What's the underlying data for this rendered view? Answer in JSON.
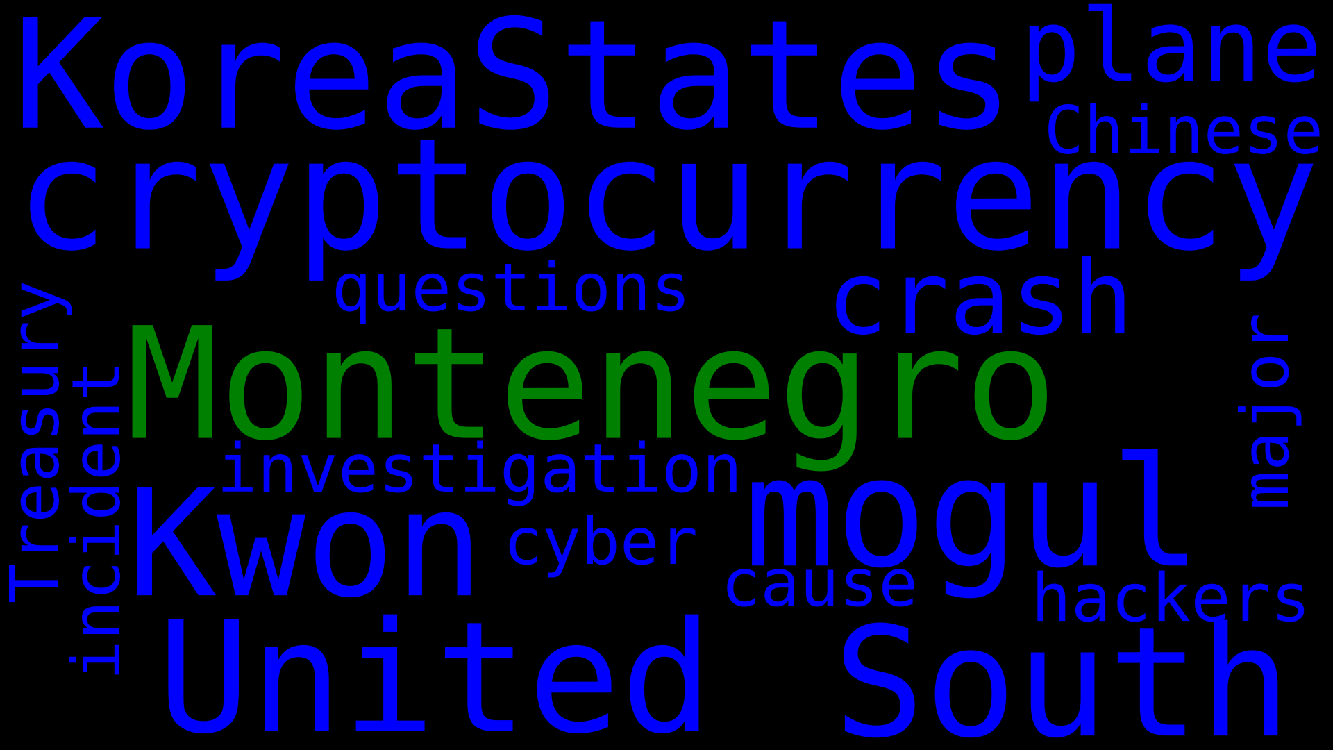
{
  "words": [
    {
      "text": "Korea",
      "color": "#0000ff"
    },
    {
      "text": "States",
      "color": "#0000ff"
    },
    {
      "text": "plane",
      "color": "#0000ff"
    },
    {
      "text": "Chinese",
      "color": "#0000ff"
    },
    {
      "text": "cryptocurrency",
      "color": "#0000ff"
    },
    {
      "text": "questions",
      "color": "#0000ff"
    },
    {
      "text": "crash",
      "color": "#0000ff"
    },
    {
      "text": "Montenegro",
      "color": "#008000"
    },
    {
      "text": "Treasury",
      "color": "#0000ff"
    },
    {
      "text": "incident",
      "color": "#0000ff"
    },
    {
      "text": "major",
      "color": "#0000ff"
    },
    {
      "text": "investigation",
      "color": "#0000ff"
    },
    {
      "text": "Kwon",
      "color": "#0000ff"
    },
    {
      "text": "mogul",
      "color": "#0000ff"
    },
    {
      "text": "cyber",
      "color": "#0000ff"
    },
    {
      "text": "cause",
      "color": "#0000ff"
    },
    {
      "text": "hackers",
      "color": "#0000ff"
    },
    {
      "text": "United",
      "color": "#0000ff"
    },
    {
      "text": "South",
      "color": "#0000ff"
    }
  ]
}
